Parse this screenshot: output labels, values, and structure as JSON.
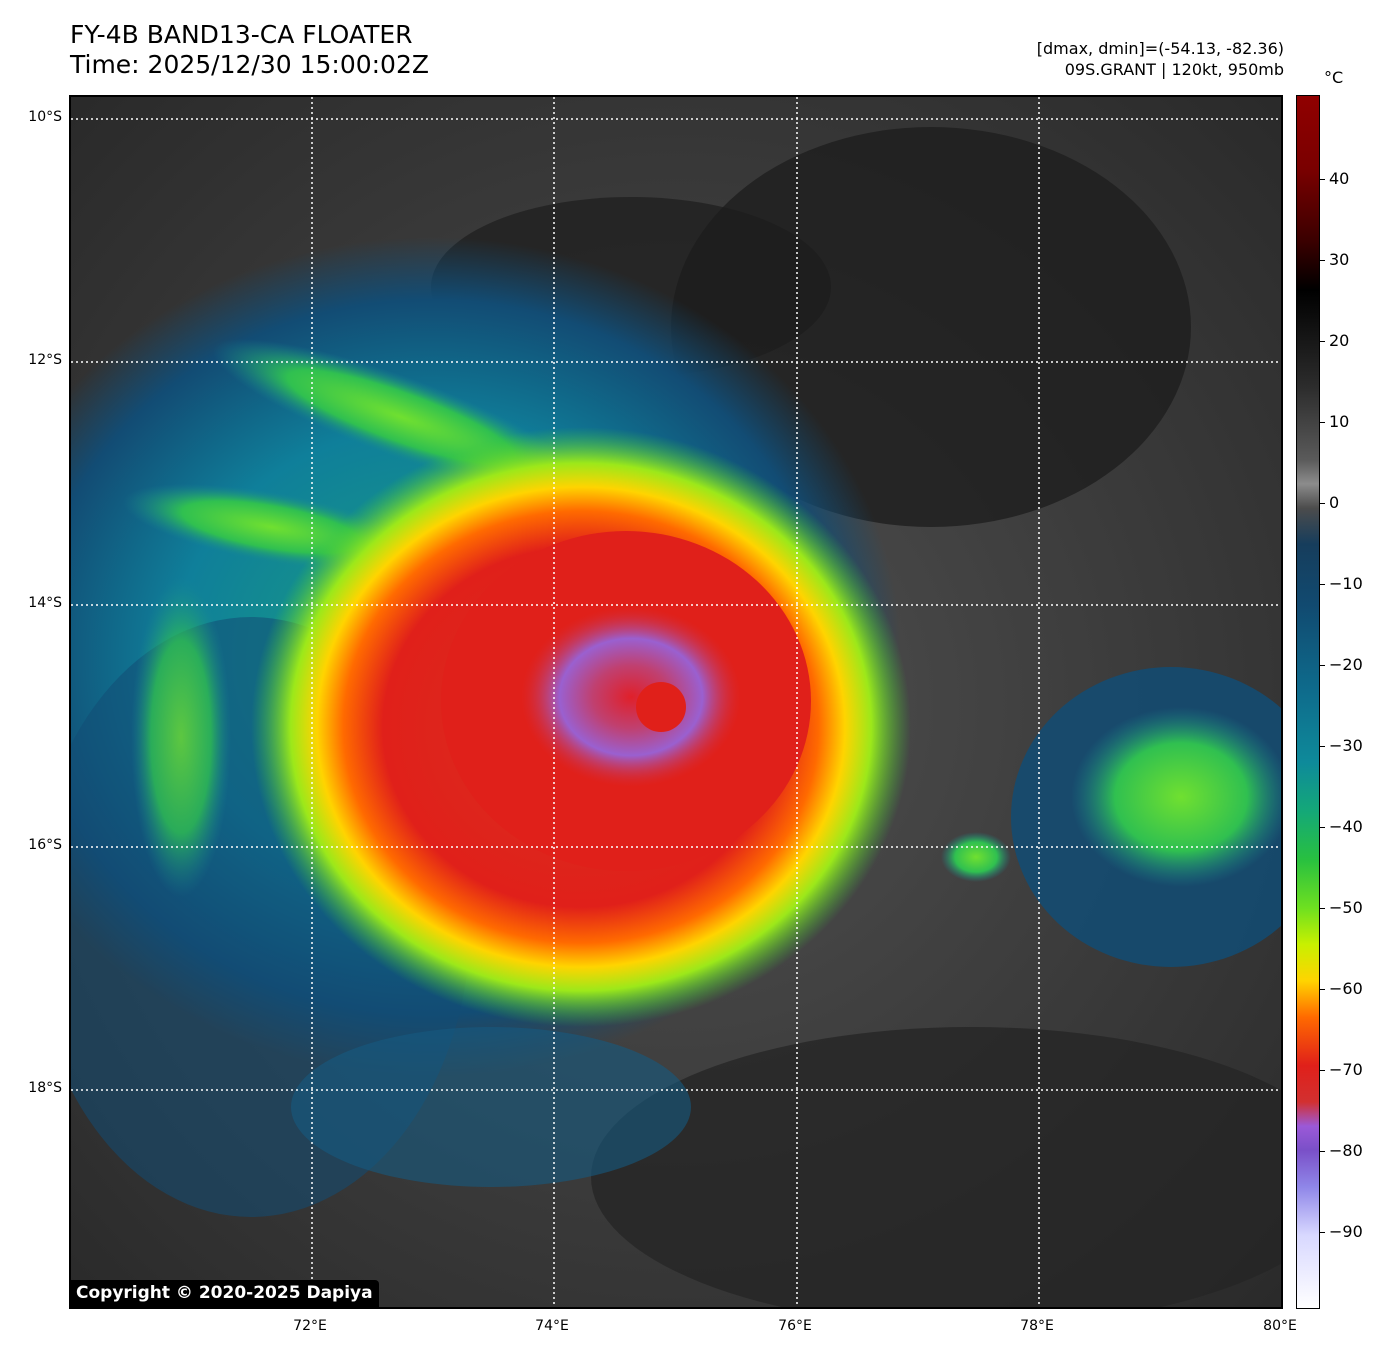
{
  "header": {
    "title_line1": "FY-4B BAND13-CA FLOATER",
    "title_line2": "Time: 2025/12/30 15:00:02Z",
    "stats_line1": "[dmax, dmin]=(-54.13, -82.36)",
    "stats_line2": "09S.GRANT | 120kt, 950mb"
  },
  "map": {
    "lat_labels": [
      "10°S",
      "12°S",
      "14°S",
      "16°S",
      "18°S"
    ],
    "lon_labels": [
      "72°E",
      "74°E",
      "76°E",
      "78°E",
      "80°E"
    ],
    "copyright": "Copyright © 2020-2025 Dapiya"
  },
  "colorbar": {
    "unit": "°C",
    "tick_labels": [
      "40",
      "30",
      "20",
      "10",
      "0",
      "−10",
      "−20",
      "−30",
      "−40",
      "−50",
      "−60",
      "−70",
      "−80",
      "−90"
    ]
  }
}
